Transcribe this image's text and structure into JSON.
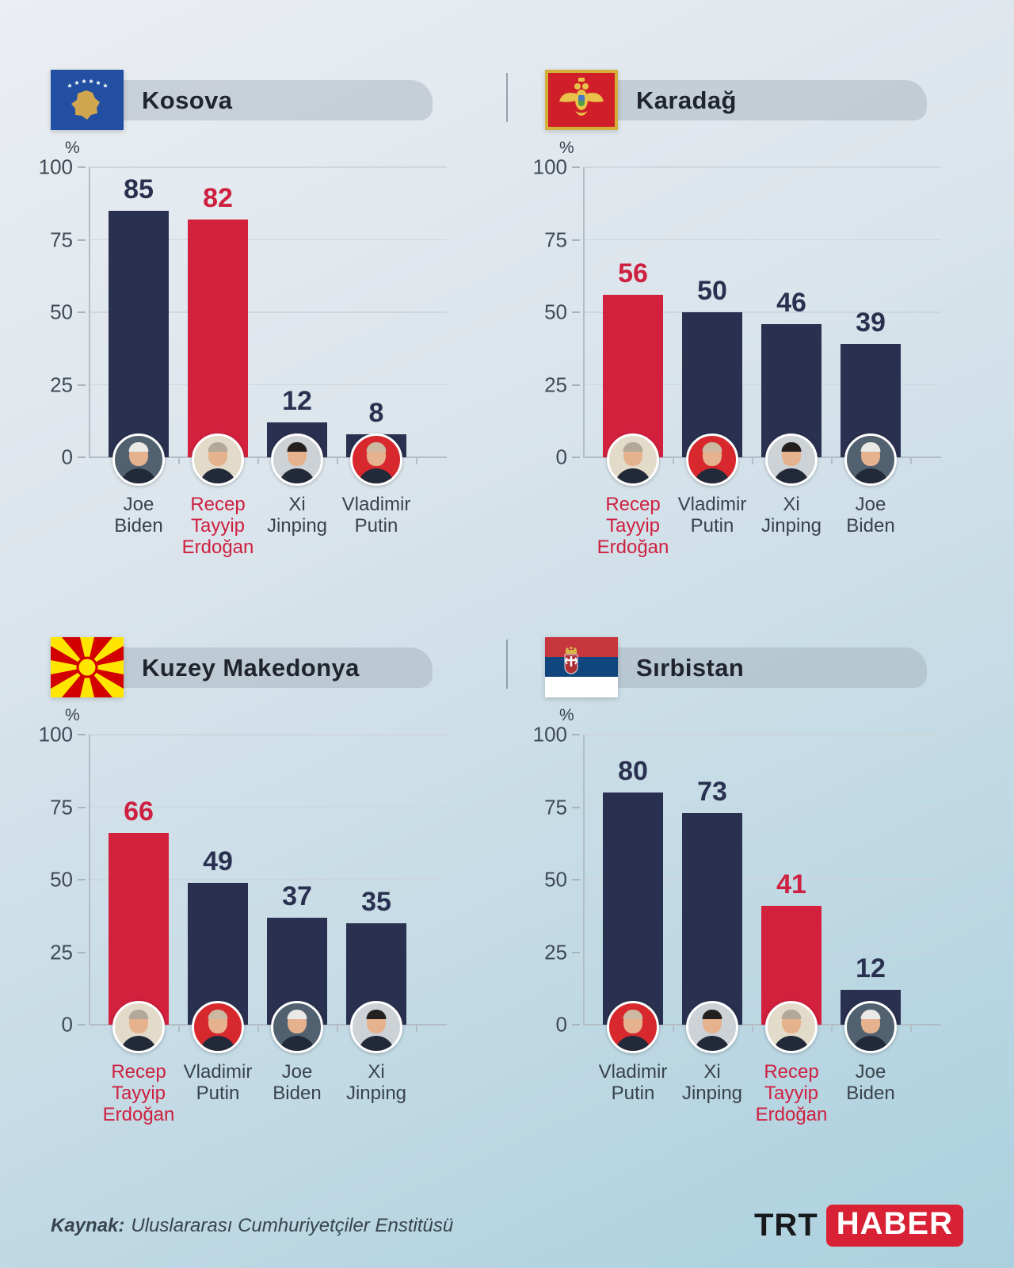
{
  "axis": {
    "unit": "%",
    "tick_labels": [
      "100",
      "75",
      "50",
      "25",
      "0"
    ]
  },
  "chart_data": [
    {
      "type": "bar",
      "title": "Kosova",
      "country": "Kosova",
      "flag": "Kosovo",
      "unit": "%",
      "ylim": [
        0,
        100
      ],
      "yticks": [
        0,
        25,
        50,
        75,
        100
      ],
      "grid": true,
      "bar_color": "#2a3150",
      "highlight_color": "#d2203d",
      "categories": [
        "Joe Biden",
        "Recep Tayyip Erdoğan",
        "Xi Jinping",
        "Vladimir Putin"
      ],
      "values": [
        85,
        82,
        12,
        8
      ],
      "bars": [
        {
          "label": "Joe Biden",
          "value": 85,
          "highlight": false
        },
        {
          "label": "Recep Tayyip Erdoğan",
          "value": 82,
          "highlight": true
        },
        {
          "label": "Xi Jinping",
          "value": 12,
          "highlight": false
        },
        {
          "label": "Vladimir Putin",
          "value": 8,
          "highlight": false
        }
      ]
    },
    {
      "type": "bar",
      "title": "Karadağ",
      "country": "Karadağ",
      "flag": "Montenegro",
      "unit": "%",
      "ylim": [
        0,
        100
      ],
      "yticks": [
        0,
        25,
        50,
        75,
        100
      ],
      "grid": true,
      "bar_color": "#2a3150",
      "highlight_color": "#d2203d",
      "categories": [
        "Recep Tayyip Erdoğan",
        "Vladimir Putin",
        "Xi Jinping",
        "Joe Biden"
      ],
      "values": [
        56,
        50,
        46,
        39
      ],
      "bars": [
        {
          "label": "Recep Tayyip Erdoğan",
          "value": 56,
          "highlight": true
        },
        {
          "label": "Vladimir Putin",
          "value": 50,
          "highlight": false
        },
        {
          "label": "Xi Jinping",
          "value": 46,
          "highlight": false
        },
        {
          "label": "Joe Biden",
          "value": 39,
          "highlight": false
        }
      ]
    },
    {
      "type": "bar",
      "title": "Kuzey Makedonya",
      "country": "Kuzey Makedonya",
      "flag": "North Macedonia",
      "unit": "%",
      "ylim": [
        0,
        100
      ],
      "yticks": [
        0,
        25,
        50,
        75,
        100
      ],
      "grid": true,
      "bar_color": "#2a3150",
      "highlight_color": "#d2203d",
      "categories": [
        "Recep Tayyip Erdoğan",
        "Vladimir Putin",
        "Joe Biden",
        "Xi Jinping"
      ],
      "values": [
        66,
        49,
        37,
        35
      ],
      "bars": [
        {
          "label": "Recep Tayyip Erdoğan",
          "value": 66,
          "highlight": true
        },
        {
          "label": "Vladimir Putin",
          "value": 49,
          "highlight": false
        },
        {
          "label": "Joe Biden",
          "value": 37,
          "highlight": false
        },
        {
          "label": "Xi Jinping",
          "value": 35,
          "highlight": false
        }
      ]
    },
    {
      "type": "bar",
      "title": "Sırbistan",
      "country": "Sırbistan",
      "flag": "Serbia",
      "unit": "%",
      "ylim": [
        0,
        100
      ],
      "yticks": [
        0,
        25,
        50,
        75,
        100
      ],
      "grid": true,
      "bar_color": "#2a3150",
      "highlight_color": "#d2203d",
      "categories": [
        "Vladimir Putin",
        "Xi Jinping",
        "Recep Tayyip Erdoğan",
        "Joe Biden"
      ],
      "values": [
        80,
        73,
        41,
        12
      ],
      "bars": [
        {
          "label": "Vladimir Putin",
          "value": 80,
          "highlight": false
        },
        {
          "label": "Xi Jinping",
          "value": 73,
          "highlight": false
        },
        {
          "label": "Recep Tayyip Erdoğan",
          "value": 41,
          "highlight": true
        },
        {
          "label": "Joe Biden",
          "value": 12,
          "highlight": false
        }
      ]
    }
  ],
  "footer": {
    "source_label": "Kaynak:",
    "source_text": "Uluslararası Cumhuriyetçiler Enstitüsü",
    "logo_trt": "TRT",
    "logo_haber": "HABER"
  },
  "colors": {
    "bar_navy": "#2a3150",
    "bar_red": "#d2203d",
    "logo_red": "#d82134",
    "background_top": "#ebeef2",
    "background_bottom": "#abd0de"
  }
}
